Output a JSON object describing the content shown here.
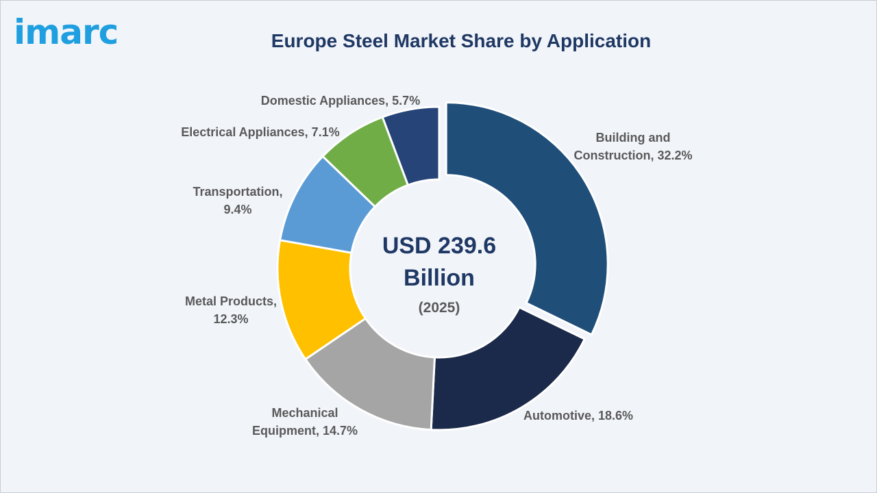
{
  "logo": {
    "text": "imarc",
    "color": "#1f9fe0"
  },
  "chart_data": {
    "type": "pie",
    "title": "Europe Steel Market Share by Application",
    "center_label": {
      "line1": "USD 239.6",
      "line2": "Billion",
      "line3": "(2025)"
    },
    "categories": [
      "Building and Construction",
      "Automotive",
      "Mechanical Equipment",
      "Metal Products",
      "Transportation",
      "Electrical Appliances",
      "Domestic Appliances"
    ],
    "values": [
      32.2,
      18.6,
      14.7,
      12.3,
      9.4,
      7.1,
      5.7
    ],
    "unit": "%",
    "labels": [
      [
        "Building and",
        "Construction, 32.2%"
      ],
      [
        "Automotive, 18.6%"
      ],
      [
        "Mechanical",
        "Equipment, 14.7%"
      ],
      [
        "Metal Products,",
        "12.3%"
      ],
      [
        "Transportation,",
        "9.4%"
      ],
      [
        "Electrical Appliances, 7.1%"
      ],
      [
        "Domestic Appliances, 5.7%"
      ]
    ],
    "colors": [
      "#1f4e79",
      "#1b2a4a",
      "#a5a5a5",
      "#ffc000",
      "#5b9bd5",
      "#70ad47",
      "#264478"
    ],
    "text_color": "#595959",
    "center_text_color": "#1f3864",
    "year_color": "#595959",
    "exploded_slice": "Building and Construction"
  }
}
